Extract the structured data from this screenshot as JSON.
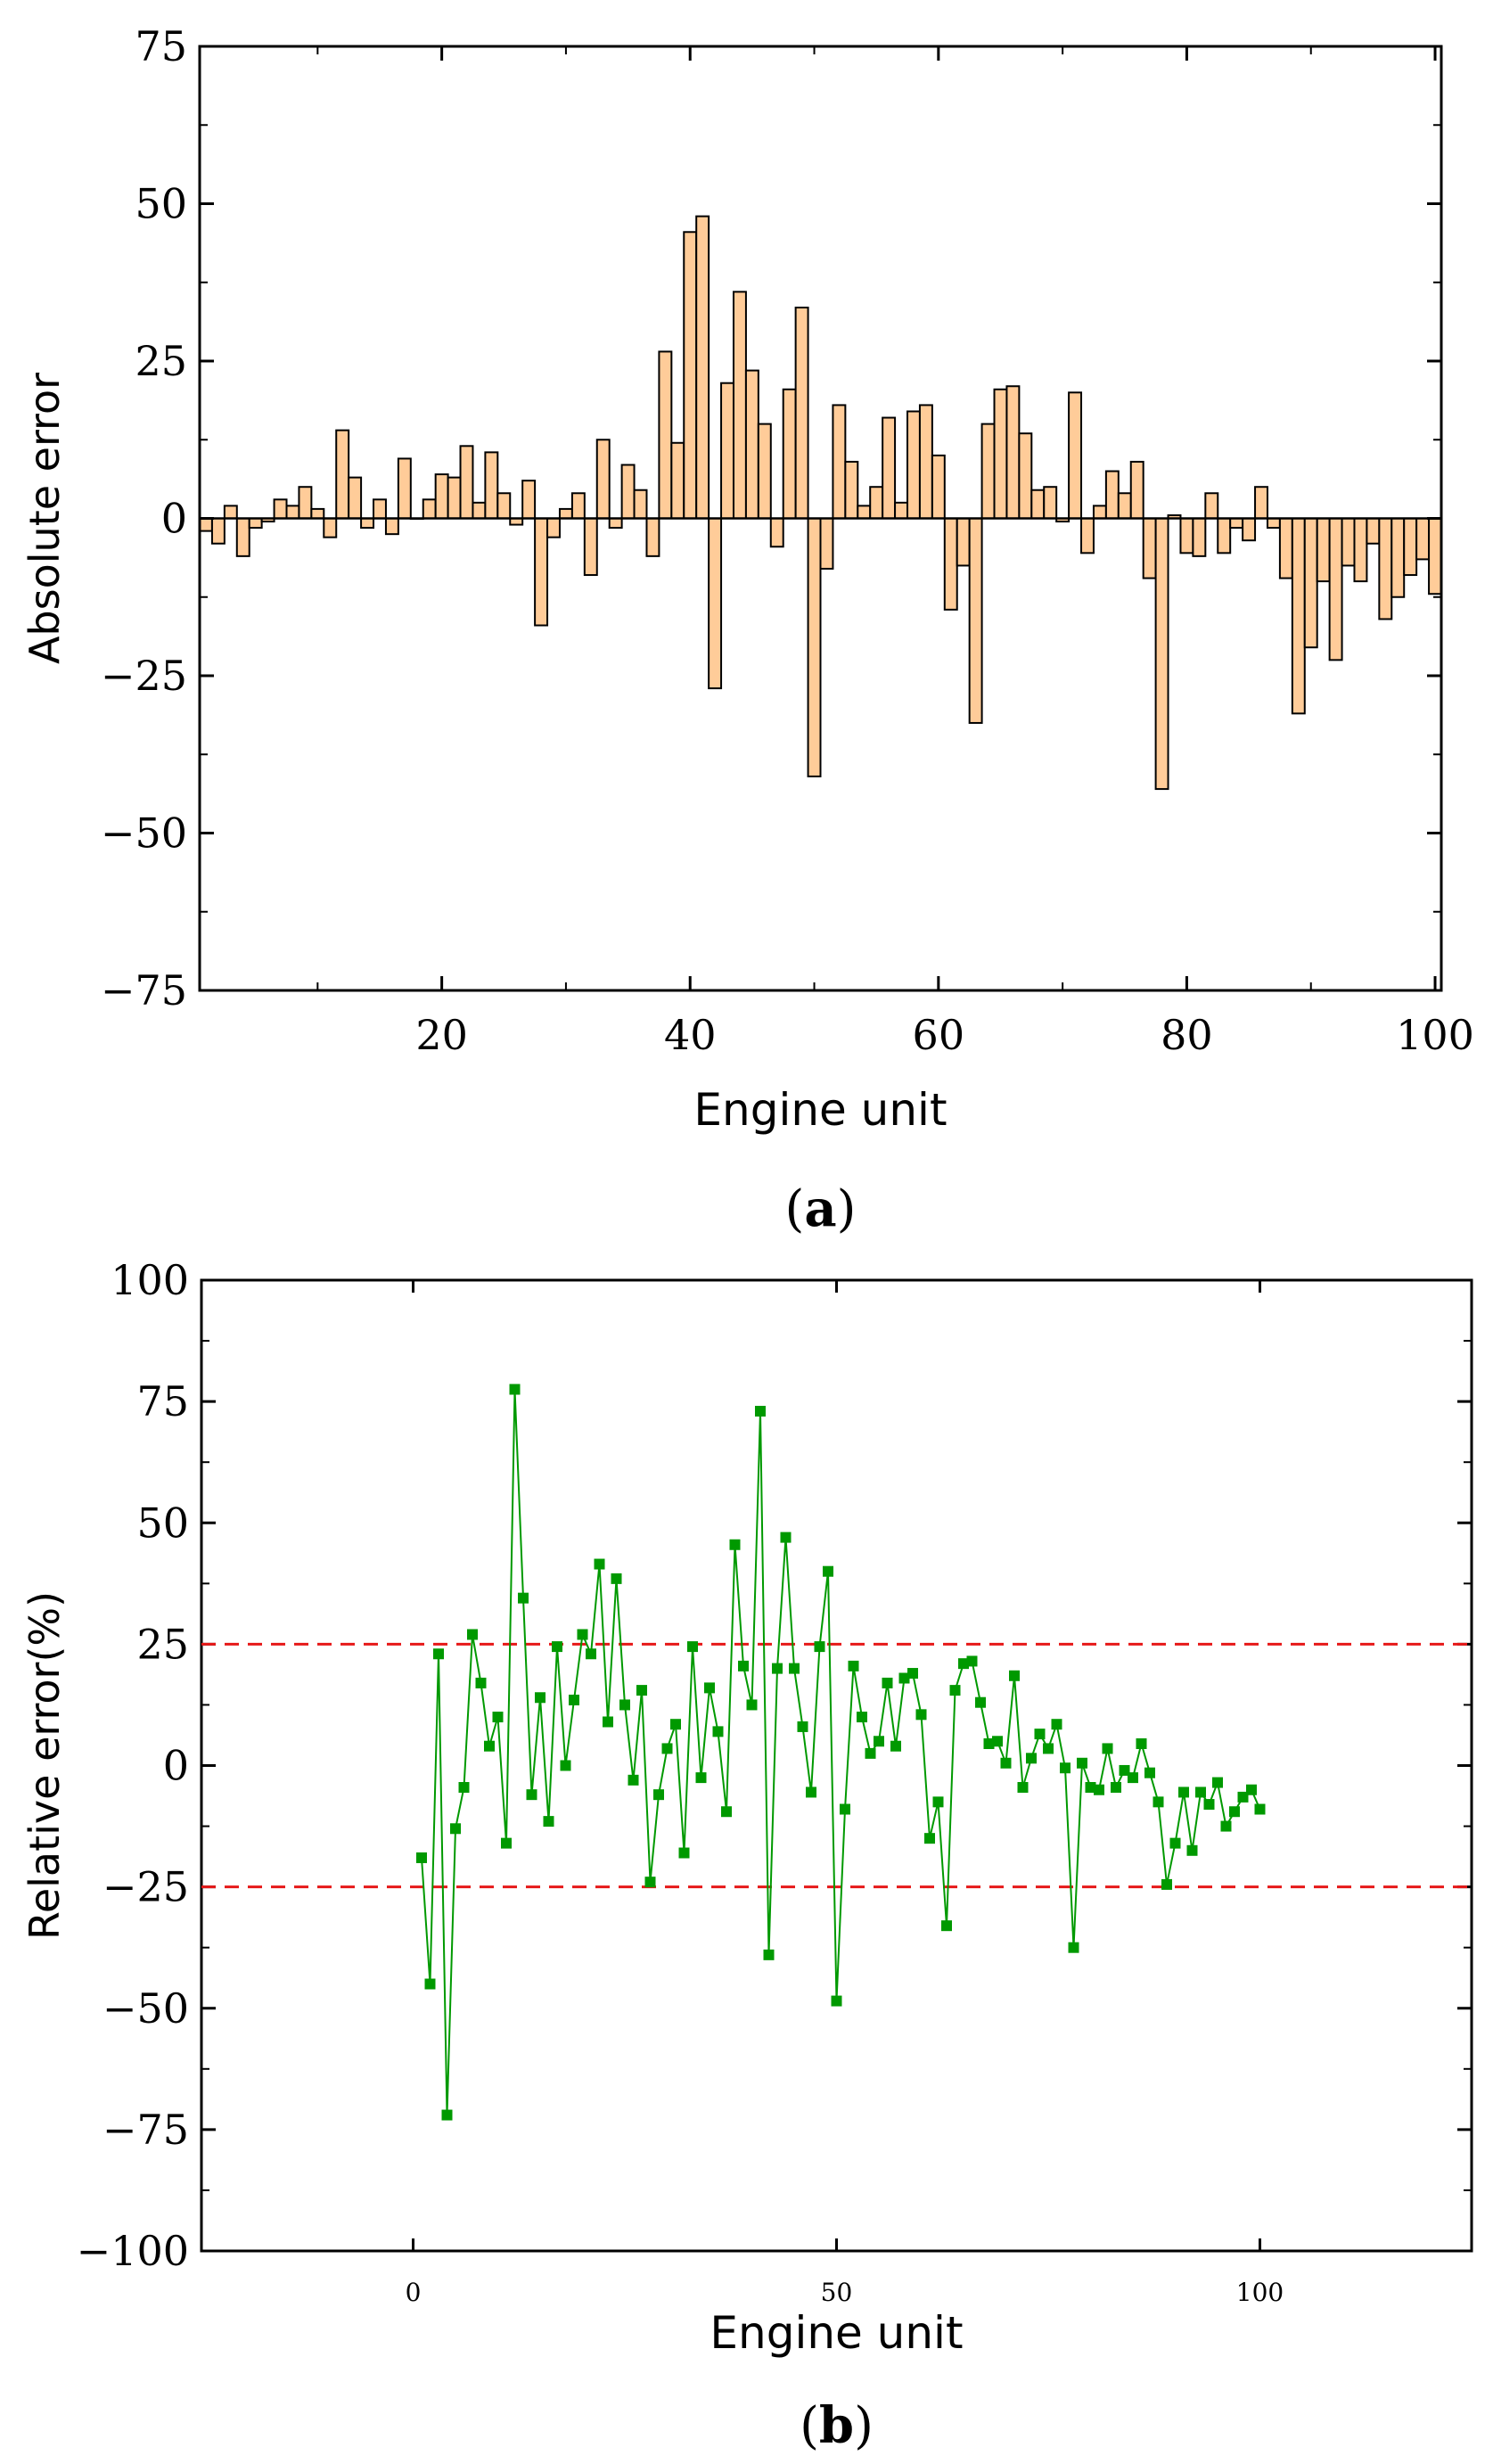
{
  "chart_data": [
    {
      "type": "bar",
      "panel_label": "(a)",
      "xlabel": "Engine unit",
      "ylabel": "Absolute error",
      "xlim": [
        0.5,
        100.5
      ],
      "ylim": [
        -75,
        75
      ],
      "yticks": [
        75,
        50,
        25,
        0,
        -25,
        -50,
        -75
      ],
      "ytick_labels": [
        "75",
        "50",
        "25",
        "0",
        "−25",
        "−50",
        "−75"
      ],
      "xticks": [
        20,
        40,
        60,
        80,
        100
      ],
      "xtick_labels": [
        "20",
        "40",
        "60",
        "80",
        "100"
      ],
      "bar_color": "#ffcc99",
      "x": [
        1,
        2,
        3,
        4,
        5,
        6,
        7,
        8,
        9,
        10,
        11,
        12,
        13,
        14,
        15,
        16,
        17,
        18,
        19,
        20,
        21,
        22,
        23,
        24,
        25,
        26,
        27,
        28,
        29,
        30,
        31,
        32,
        33,
        34,
        35,
        36,
        37,
        38,
        39,
        40,
        41,
        42,
        43,
        44,
        45,
        46,
        47,
        48,
        49,
        50,
        51,
        52,
        53,
        54,
        55,
        56,
        57,
        58,
        59,
        60,
        61,
        62,
        63,
        64,
        65,
        66,
        67,
        68,
        69,
        70,
        71,
        72,
        73,
        74,
        75,
        76,
        77,
        78,
        79,
        80,
        81,
        82,
        83,
        84,
        85,
        86,
        87,
        88,
        89,
        90,
        91,
        92,
        93,
        94,
        95,
        96,
        97,
        98,
        99,
        100
      ],
      "values": [
        -2,
        -4,
        2,
        -6,
        -1.5,
        -0.5,
        3,
        2,
        5,
        1.5,
        -3,
        14,
        6.5,
        -1.5,
        3,
        -2.5,
        9.5,
        0,
        3,
        7,
        6.5,
        11.5,
        2.5,
        10.5,
        4,
        -1,
        6,
        -17,
        -3,
        1.5,
        4,
        -9,
        12.5,
        -1.5,
        8.5,
        4.5,
        -6,
        26.5,
        12,
        45.5,
        48,
        -27,
        21.5,
        36,
        23.5,
        15,
        -4.5,
        20.5,
        33.5,
        -41,
        -8,
        18,
        9,
        2,
        5,
        16,
        2.5,
        17,
        18,
        10,
        -14.5,
        -7.5,
        -32.5,
        15,
        20.5,
        21,
        13.5,
        4.5,
        5,
        -0.5,
        20,
        -5.5,
        2,
        7.5,
        4,
        9,
        -9.5,
        -43,
        0.5,
        -5.5,
        -6,
        4,
        -5.5,
        -1.5,
        -3.5,
        5,
        -1.5,
        -9.5,
        -31,
        -20.5,
        -10,
        -22.5,
        -7.5,
        -10,
        -4,
        -16,
        -12.5,
        -9,
        -6.5,
        -12
      ]
    },
    {
      "type": "line",
      "panel_label": "(b)",
      "xlabel": "Engine unit",
      "ylabel": "Relative error(%)",
      "xlim": [
        -25,
        125
      ],
      "ylim": [
        -100,
        100
      ],
      "yticks": [
        100,
        75,
        50,
        25,
        0,
        -25,
        -50,
        -75,
        -100
      ],
      "ytick_labels": [
        "100",
        "75",
        "50",
        "25",
        "0",
        "−25",
        "−50",
        "−75",
        "−100"
      ],
      "xticks": [
        0,
        50,
        100
      ],
      "xtick_labels": [
        "0",
        "50",
        "100"
      ],
      "reference_lines": [
        25,
        -25
      ],
      "line_color": "#009900",
      "ref_line_color": "#e61919",
      "series": [
        {
          "name": "Relative error",
          "x": [
            1,
            2,
            3,
            4,
            5,
            6,
            7,
            8,
            9,
            10,
            11,
            12,
            13,
            14,
            15,
            16,
            17,
            18,
            19,
            20,
            21,
            22,
            23,
            24,
            25,
            26,
            27,
            28,
            29,
            30,
            31,
            32,
            33,
            34,
            35,
            36,
            37,
            38,
            39,
            40,
            41,
            42,
            43,
            44,
            45,
            46,
            47,
            48,
            49,
            50,
            51,
            52,
            53,
            54,
            55,
            56,
            57,
            58,
            59,
            60,
            61,
            62,
            63,
            64,
            65,
            66,
            67,
            68,
            69,
            70,
            71,
            72,
            73,
            74,
            75,
            76,
            77,
            78,
            79,
            80,
            81,
            82,
            83,
            84,
            85,
            86,
            87,
            88,
            89,
            90,
            91,
            92,
            93,
            94,
            95,
            96,
            97,
            98,
            99,
            100
          ],
          "values": [
            -19,
            -45,
            23,
            -72,
            -13,
            -4.5,
            27,
            17,
            4,
            10,
            -16,
            77.5,
            34.5,
            -6,
            14,
            -11.5,
            24.5,
            0,
            13.5,
            27,
            23,
            41.5,
            9,
            38.5,
            12.5,
            -3,
            15.5,
            -24,
            -6,
            3.5,
            8.5,
            -18,
            24.5,
            -2.5,
            16,
            7,
            -9.5,
            45.5,
            20.5,
            12.5,
            73,
            -39,
            20,
            47,
            20,
            8,
            -5.5,
            24.5,
            40,
            -48.5,
            -9,
            20.5,
            10,
            2.5,
            5,
            17,
            4,
            18,
            19,
            10.5,
            -15,
            -7.5,
            -33,
            15.5,
            21,
            21.5,
            13,
            4.5,
            5,
            0.5,
            18.5,
            -4.5,
            1.5,
            6.5,
            3.5,
            8.5,
            -0.5,
            -37.5,
            0.5,
            -4.5,
            -5,
            3.5,
            -4.5,
            -1,
            -2.5,
            4.5,
            -1.5,
            -7.5,
            -24.5,
            -16,
            -5.5,
            -17.5,
            -5.5,
            -8,
            -3.5,
            -12.5,
            -9.5,
            -6.5,
            -5,
            -9
          ]
        }
      ]
    }
  ]
}
